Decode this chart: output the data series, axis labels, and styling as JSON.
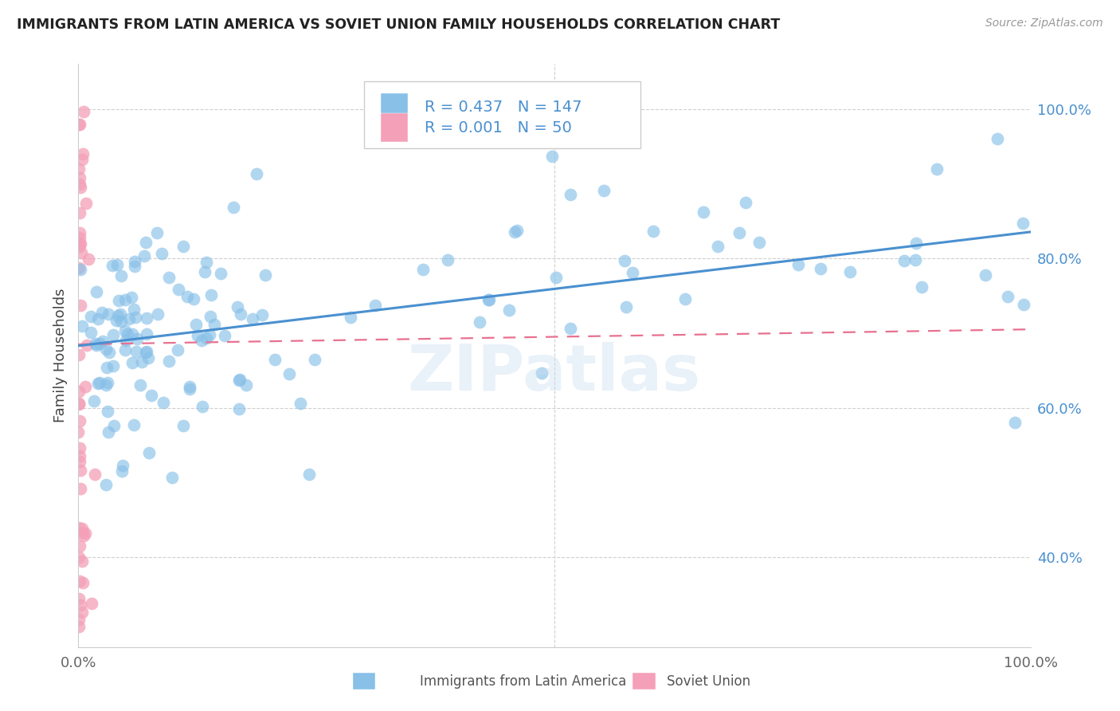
{
  "title": "IMMIGRANTS FROM LATIN AMERICA VS SOVIET UNION FAMILY HOUSEHOLDS CORRELATION CHART",
  "source": "Source: ZipAtlas.com",
  "ylabel": "Family Households",
  "legend_series1_label": "Immigrants from Latin America",
  "legend_series1_R": "0.437",
  "legend_series1_N": "147",
  "legend_series2_label": "Soviet Union",
  "legend_series2_R": "0.001",
  "legend_series2_N": "50",
  "color_blue": "#88c0e8",
  "color_pink": "#f4a0b8",
  "color_blue_line": "#4a90d0",
  "color_pink_line": "#e87090",
  "color_text_blue": "#4a90d0",
  "watermark": "ZIPatlas",
  "xlim": [
    0.0,
    1.0
  ],
  "ylim": [
    0.28,
    1.06
  ],
  "ytick_values": [
    0.4,
    0.6,
    0.8,
    1.0
  ],
  "ytick_labels": [
    "40.0%",
    "60.0%",
    "80.0%",
    "100.0%"
  ],
  "latin_seed": 12345,
  "soviet_seed": 67890
}
